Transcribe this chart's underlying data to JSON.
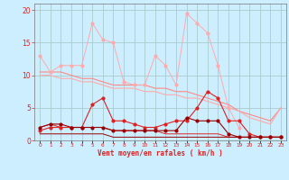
{
  "x": [
    0,
    1,
    2,
    3,
    4,
    5,
    6,
    7,
    8,
    9,
    10,
    11,
    12,
    13,
    14,
    15,
    16,
    17,
    18,
    19,
    20,
    21,
    22,
    23
  ],
  "line1": [
    13.0,
    10.5,
    11.5,
    11.5,
    11.5,
    18.0,
    15.5,
    15.0,
    9.0,
    8.5,
    8.5,
    13.0,
    11.5,
    8.5,
    19.5,
    18.0,
    16.5,
    11.5,
    5.0,
    2.0,
    null,
    null,
    null,
    null
  ],
  "line2": [
    10.5,
    10.5,
    10.5,
    10.0,
    9.5,
    9.5,
    9.0,
    8.5,
    8.5,
    8.5,
    8.5,
    8.0,
    8.0,
    7.5,
    7.5,
    7.0,
    6.5,
    6.0,
    5.5,
    4.5,
    4.0,
    3.5,
    3.0,
    5.0
  ],
  "line3": [
    10.0,
    10.0,
    9.5,
    9.5,
    9.0,
    9.0,
    8.5,
    8.0,
    8.0,
    8.0,
    7.5,
    7.5,
    7.0,
    7.0,
    6.5,
    6.5,
    6.0,
    5.5,
    5.0,
    4.5,
    3.5,
    3.0,
    2.5,
    5.0
  ],
  "line4": [
    1.5,
    2.0,
    2.0,
    2.0,
    2.0,
    5.5,
    6.5,
    3.0,
    3.0,
    2.5,
    2.0,
    2.0,
    2.5,
    3.0,
    3.0,
    5.0,
    7.5,
    6.5,
    3.0,
    3.0,
    1.0,
    0.5,
    0.5,
    0.5
  ],
  "line5": [
    2.0,
    2.5,
    2.5,
    2.0,
    2.0,
    2.0,
    2.0,
    1.5,
    1.5,
    1.5,
    1.5,
    1.5,
    1.5,
    1.5,
    3.5,
    3.0,
    3.0,
    3.0,
    1.0,
    0.5,
    0.5,
    0.5,
    0.5,
    0.5
  ],
  "line6": [
    2.0,
    2.5,
    2.0,
    2.0,
    2.0,
    2.0,
    2.0,
    1.5,
    1.5,
    1.5,
    1.5,
    1.5,
    1.0,
    1.0,
    1.0,
    1.0,
    1.0,
    1.0,
    0.5,
    0.5,
    0.5,
    0.5,
    0.5,
    0.5
  ],
  "line7": [
    1.0,
    1.0,
    1.0,
    1.0,
    1.0,
    1.0,
    1.0,
    0.5,
    0.5,
    0.5,
    0.5,
    0.5,
    0.5,
    0.5,
    0.5,
    0.5,
    0.5,
    0.5,
    0.5,
    0.5,
    0.5,
    0.5,
    0.5,
    0.5
  ],
  "bg_color": "#cceeff",
  "grid_color": "#aacccc",
  "xlabel": "Vent moyen/en rafales ( km/h )",
  "ylim": [
    0,
    21
  ],
  "xlim": [
    -0.5,
    23.5
  ],
  "color_light_pink": "#ffaaaa",
  "color_medium_pink": "#ff8888",
  "color_red": "#dd2222",
  "color_dark_red": "#990000"
}
